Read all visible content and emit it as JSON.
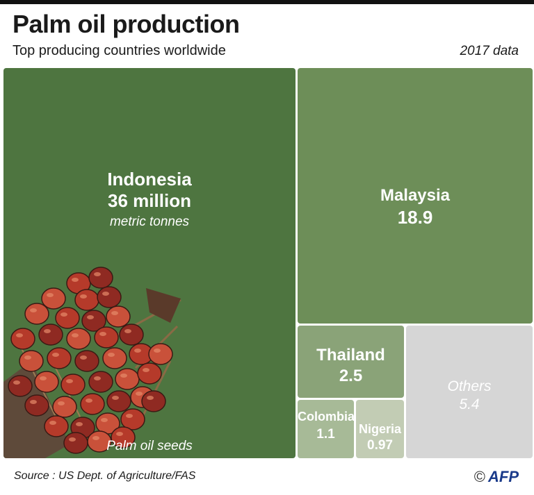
{
  "header": {
    "title": "Palm oil production",
    "subtitle": "Top producing countries worldwide",
    "year_note": "2017 data"
  },
  "chart_data": {
    "type": "treemap",
    "title": "Palm oil production",
    "subtitle": "Top producing countries worldwide",
    "unit": "metric tonnes",
    "series": [
      {
        "name": "Indonesia",
        "value": 36,
        "label": "36 million",
        "color": "#4e7540"
      },
      {
        "name": "Malaysia",
        "value": 18.9,
        "label": "18.9",
        "color": "#6d8e58"
      },
      {
        "name": "Thailand",
        "value": 2.5,
        "label": "2.5",
        "color": "#8aa378"
      },
      {
        "name": "Colombia",
        "value": 1.1,
        "label": "1.1",
        "color": "#a7ba97"
      },
      {
        "name": "Nigeria",
        "value": 0.97,
        "label": "0.97",
        "color": "#c2ccb4"
      },
      {
        "name": "Others",
        "value": 5.4,
        "label": "5.4",
        "color": "#d6d6d6"
      }
    ]
  },
  "photo": {
    "caption": "Palm oil seeds"
  },
  "footer": {
    "source": "Source : US Dept. of Agriculture/FAS",
    "copyright": "©",
    "logo": "AFP"
  }
}
